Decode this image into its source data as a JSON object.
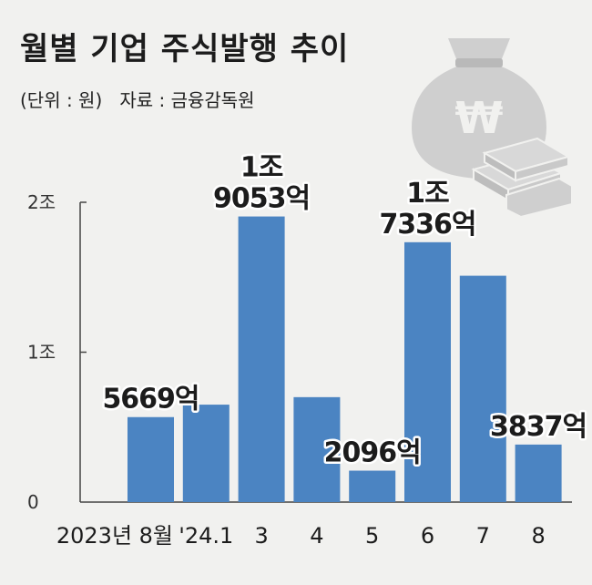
{
  "title": "월별 기업 주식발행 추이",
  "subtitle": "(단위 : 원)   자료 : 금융감독원",
  "icon": "money-bag-won-icon",
  "chart_data": {
    "type": "bar",
    "unit": "원",
    "categories": [
      "2023년 8월",
      "'24.1",
      "3",
      "4",
      "5",
      "6",
      "7",
      "8"
    ],
    "values": [
      5669,
      6500,
      19053,
      7000,
      2096,
      17336,
      15100,
      3837
    ],
    "value_unit": "억 원",
    "y_ticks": [
      {
        "value": 0,
        "label": "0"
      },
      {
        "value": 10000,
        "label": "1조"
      },
      {
        "value": 20000,
        "label": "2조"
      }
    ],
    "ylim": [
      0,
      20000
    ],
    "data_labels": [
      {
        "index": 0,
        "lines": [
          "5669억"
        ]
      },
      {
        "index": 2,
        "lines": [
          "1조",
          "9053억"
        ]
      },
      {
        "index": 4,
        "lines": [
          "2096억"
        ]
      },
      {
        "index": 5,
        "lines": [
          "1조",
          "7336억"
        ]
      },
      {
        "index": 7,
        "lines": [
          "3837억"
        ]
      }
    ],
    "colors": {
      "bar": "#4b84c2",
      "axis": "#444444",
      "text": "#1c1c1c"
    }
  }
}
